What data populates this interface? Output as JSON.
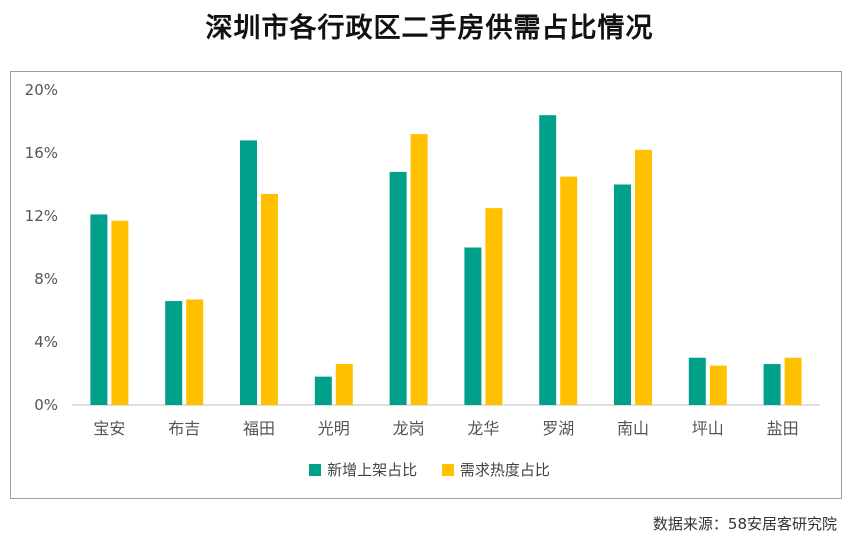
{
  "title": "深圳市各行政区二手房供需占比情况",
  "source": "数据来源：58安居客研究院",
  "chart_data": {
    "type": "bar",
    "title": "深圳市各行政区二手房供需占比情况",
    "categories": [
      "宝安",
      "布吉",
      "福田",
      "光明",
      "龙岗",
      "龙华",
      "罗湖",
      "南山",
      "坪山",
      "盐田"
    ],
    "series": [
      {
        "name": "新增上架占比",
        "color": "#00a08a",
        "values": [
          12.1,
          6.6,
          16.8,
          1.8,
          14.8,
          10.0,
          18.4,
          14.0,
          3.0,
          2.6
        ]
      },
      {
        "name": "需求热度占比",
        "color": "#ffc000",
        "values": [
          11.7,
          6.7,
          13.4,
          2.6,
          17.2,
          12.5,
          14.5,
          16.2,
          2.5,
          3.0
        ]
      }
    ],
    "y_ticks": [
      "0%",
      "4%",
      "8%",
      "12%",
      "16%",
      "20%"
    ],
    "ylim": [
      0,
      20
    ],
    "grid": false,
    "legend": "bottom"
  }
}
